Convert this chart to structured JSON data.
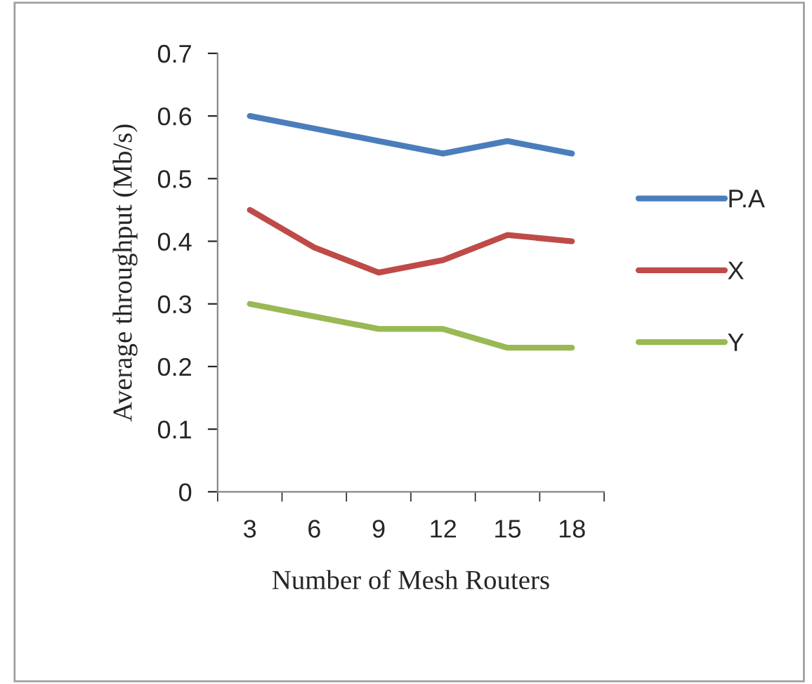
{
  "chart_data": {
    "type": "line",
    "xlabel": "Number of Mesh Routers",
    "ylabel": "Average throughput (Mb/s)",
    "categories": [
      "3",
      "6",
      "9",
      "12",
      "15",
      "18"
    ],
    "series": [
      {
        "name": "P.A",
        "color": "#4a7ebb",
        "values": [
          0.6,
          0.58,
          0.56,
          0.54,
          0.56,
          0.54
        ]
      },
      {
        "name": "X",
        "color": "#be4b48",
        "values": [
          0.45,
          0.39,
          0.35,
          0.37,
          0.41,
          0.4
        ]
      },
      {
        "name": "Y",
        "color": "#98b954",
        "values": [
          0.3,
          0.28,
          0.26,
          0.26,
          0.23,
          0.23
        ]
      }
    ],
    "ylim": [
      0,
      0.7
    ],
    "yticks": [
      0,
      0.1,
      0.2,
      0.3,
      0.4,
      0.5,
      0.6,
      0.7
    ],
    "legend": "right",
    "grid": false,
    "marker": "none",
    "line_style": "solid"
  }
}
